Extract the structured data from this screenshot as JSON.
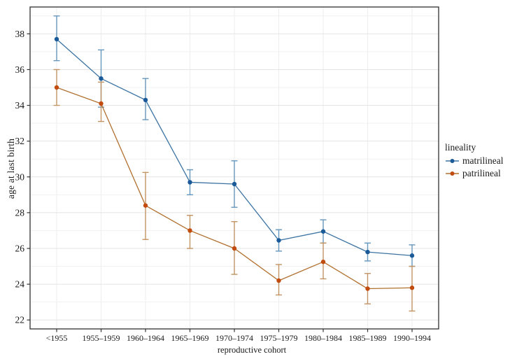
{
  "chart_data": {
    "type": "line",
    "title": "",
    "xlabel": "reproductive cohort",
    "ylabel": "age at last birth",
    "categories": [
      "<1955",
      "1955–1959",
      "1960–1964",
      "1965–1969",
      "1970–1974",
      "1975–1979",
      "1980–1984",
      "1985–1989",
      "1990–1994"
    ],
    "yticks": [
      22,
      24,
      26,
      28,
      30,
      32,
      34,
      36,
      38
    ],
    "ylim": [
      21.5,
      39.5
    ],
    "grid": "light gray horizontal lines at every integer age, light vertical lines at each cohort",
    "legend": {
      "title": "lineality",
      "position": "right"
    },
    "error_bars": "95% confidence intervals with caps",
    "series": [
      {
        "name": "matrilineal",
        "color": "#1a5a99",
        "line_color": "#3d74a3",
        "error_color": "#6697bd",
        "values": [
          37.7,
          35.5,
          34.3,
          29.7,
          29.6,
          26.45,
          26.95,
          25.8,
          25.6
        ],
        "ci_low": [
          36.5,
          33.9,
          33.2,
          29.0,
          28.3,
          25.85,
          26.3,
          25.3,
          25.0
        ],
        "ci_high": [
          39.0,
          37.1,
          35.5,
          30.4,
          30.9,
          27.05,
          27.6,
          26.3,
          26.2
        ]
      },
      {
        "name": "patrilineal",
        "color": "#c24b10",
        "line_color": "#b0702f",
        "error_color": "#c29464",
        "values": [
          35.0,
          34.1,
          28.4,
          27.0,
          26.0,
          24.2,
          25.25,
          23.75,
          23.8
        ],
        "ci_low": [
          34.0,
          33.1,
          26.5,
          26.0,
          24.55,
          23.4,
          24.3,
          22.9,
          22.5
        ],
        "ci_high": [
          36.0,
          35.3,
          30.25,
          27.85,
          27.5,
          25.1,
          26.3,
          24.6,
          25.0
        ]
      }
    ],
    "panel_border_color": "#3f3f3f",
    "grid_major_color": "#e4e4e4",
    "grid_minor_color": "#f1f1f1",
    "text_color": "#1a1a1a"
  }
}
